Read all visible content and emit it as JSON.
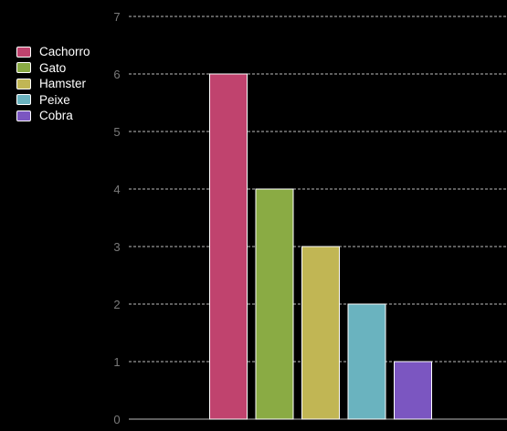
{
  "chart_data": {
    "type": "bar",
    "categories": [
      "Cachorro",
      "Gato",
      "Hamster",
      "Peixe",
      "Cobra"
    ],
    "values": [
      6,
      4,
      3,
      2,
      1
    ],
    "colors": [
      "#c0436e",
      "#8aab44",
      "#c1b654",
      "#6ab3bf",
      "#7b56c1"
    ],
    "ylim": [
      0,
      7
    ],
    "yticks": [
      "0",
      "1",
      "2",
      "3",
      "4",
      "5",
      "6",
      "7"
    ],
    "grid": true,
    "legend_position": "left"
  }
}
